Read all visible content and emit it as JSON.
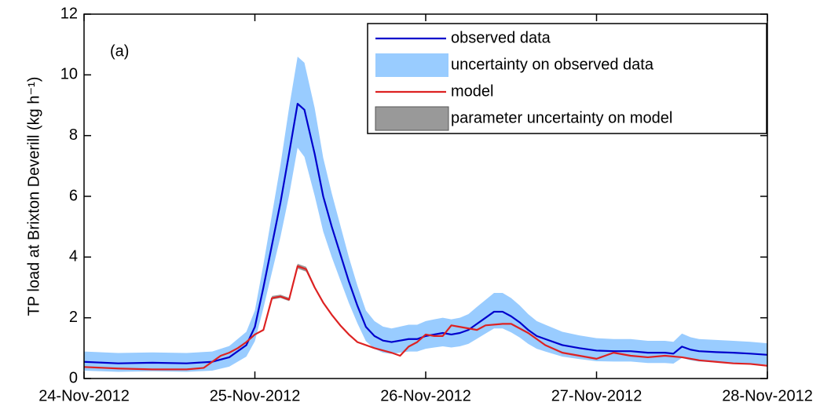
{
  "chart_data": {
    "type": "line",
    "y_label": "TP load at Brixton Deverill (kg h⁻¹)",
    "annotation": "(a)",
    "xlim": [
      0,
      4
    ],
    "xticks": [
      {
        "value": 0,
        "label": "24-Nov-2012"
      },
      {
        "value": 1,
        "label": "25-Nov-2012"
      },
      {
        "value": 2,
        "label": "26-Nov-2012"
      },
      {
        "value": 3,
        "label": "27-Nov-2012"
      },
      {
        "value": 4,
        "label": "28-Nov-2012"
      }
    ],
    "ylim": [
      0,
      12
    ],
    "yticks": [
      0,
      2,
      4,
      6,
      8,
      10,
      12
    ],
    "grid": false,
    "legend": "upper right",
    "series": [
      {
        "name": "observed data",
        "color": "#0000cc",
        "x": [
          0,
          0.2,
          0.4,
          0.6,
          0.75,
          0.85,
          0.95,
          1.0,
          1.05,
          1.1,
          1.15,
          1.2,
          1.25,
          1.29,
          1.35,
          1.4,
          1.45,
          1.5,
          1.55,
          1.6,
          1.65,
          1.7,
          1.75,
          1.8,
          1.85,
          1.9,
          1.95,
          2.0,
          2.05,
          2.1,
          2.15,
          2.2,
          2.25,
          2.3,
          2.35,
          2.4,
          2.45,
          2.5,
          2.55,
          2.6,
          2.65,
          2.7,
          2.8,
          2.9,
          3.0,
          3.1,
          3.2,
          3.3,
          3.4,
          3.45,
          3.5,
          3.55,
          3.6,
          3.7,
          3.8,
          3.9,
          4.0
        ],
        "values": [
          0.55,
          0.5,
          0.52,
          0.5,
          0.55,
          0.7,
          1.1,
          1.7,
          3.0,
          4.4,
          5.8,
          7.4,
          9.05,
          8.85,
          7.4,
          6.0,
          5.0,
          4.1,
          3.2,
          2.4,
          1.7,
          1.4,
          1.25,
          1.2,
          1.25,
          1.3,
          1.3,
          1.4,
          1.45,
          1.5,
          1.45,
          1.5,
          1.6,
          1.8,
          2.0,
          2.2,
          2.2,
          2.05,
          1.85,
          1.6,
          1.4,
          1.3,
          1.1,
          1.0,
          0.92,
          0.9,
          0.9,
          0.85,
          0.85,
          0.82,
          1.05,
          0.95,
          0.9,
          0.87,
          0.85,
          0.82,
          0.78
        ]
      },
      {
        "name": "uncertainty on observed data",
        "color": "#99ccff",
        "x": [
          0,
          0.2,
          0.4,
          0.6,
          0.75,
          0.85,
          0.95,
          1.0,
          1.05,
          1.1,
          1.15,
          1.2,
          1.25,
          1.29,
          1.35,
          1.4,
          1.45,
          1.5,
          1.55,
          1.6,
          1.65,
          1.7,
          1.75,
          1.8,
          1.85,
          1.9,
          1.95,
          2.0,
          2.05,
          2.1,
          2.15,
          2.2,
          2.25,
          2.3,
          2.35,
          2.4,
          2.45,
          2.5,
          2.55,
          2.6,
          2.65,
          2.7,
          2.8,
          2.9,
          3.0,
          3.1,
          3.2,
          3.3,
          3.4,
          3.45,
          3.5,
          3.55,
          3.6,
          3.7,
          3.8,
          3.9,
          4.0
        ],
        "lower": [
          0.26,
          0.22,
          0.24,
          0.22,
          0.26,
          0.39,
          0.72,
          1.23,
          2.32,
          3.5,
          4.67,
          6.02,
          7.6,
          7.3,
          6.02,
          4.84,
          4.0,
          3.24,
          2.49,
          1.82,
          1.23,
          0.98,
          0.85,
          0.81,
          0.85,
          0.89,
          0.89,
          0.98,
          1.02,
          1.06,
          1.02,
          1.06,
          1.14,
          1.31,
          1.48,
          1.65,
          1.65,
          1.52,
          1.35,
          1.14,
          0.98,
          0.89,
          0.72,
          0.64,
          0.57,
          0.56,
          0.56,
          0.51,
          0.51,
          0.49,
          0.68,
          0.6,
          0.56,
          0.53,
          0.51,
          0.49,
          0.46
        ],
        "upper": [
          0.89,
          0.84,
          0.86,
          0.84,
          0.89,
          1.07,
          1.54,
          2.24,
          3.76,
          5.4,
          7.04,
          8.91,
          10.6,
          10.4,
          8.91,
          7.27,
          6.1,
          5.05,
          4.0,
          3.06,
          2.24,
          1.89,
          1.71,
          1.65,
          1.71,
          1.77,
          1.77,
          1.89,
          1.95,
          2.0,
          1.95,
          2.0,
          2.12,
          2.36,
          2.59,
          2.82,
          2.82,
          2.65,
          2.41,
          2.12,
          1.89,
          1.77,
          1.54,
          1.42,
          1.33,
          1.3,
          1.3,
          1.24,
          1.24,
          1.21,
          1.48,
          1.36,
          1.3,
          1.27,
          1.24,
          1.21,
          1.16
        ]
      },
      {
        "name": "model",
        "color": "#dd2222",
        "x": [
          0,
          0.2,
          0.4,
          0.6,
          0.7,
          0.75,
          0.8,
          0.85,
          0.9,
          0.95,
          1.0,
          1.05,
          1.1,
          1.15,
          1.2,
          1.25,
          1.3,
          1.35,
          1.4,
          1.45,
          1.5,
          1.55,
          1.6,
          1.7,
          1.8,
          1.85,
          1.9,
          1.95,
          2.0,
          2.05,
          2.1,
          2.15,
          2.2,
          2.3,
          2.35,
          2.45,
          2.5,
          2.6,
          2.7,
          2.8,
          2.9,
          3.0,
          3.05,
          3.1,
          3.2,
          3.3,
          3.4,
          3.5,
          3.6,
          3.7,
          3.8,
          3.9,
          4.0
        ],
        "values": [
          0.38,
          0.33,
          0.3,
          0.3,
          0.35,
          0.55,
          0.75,
          0.85,
          1.0,
          1.2,
          1.45,
          1.6,
          2.65,
          2.7,
          2.6,
          3.7,
          3.6,
          3.0,
          2.5,
          2.1,
          1.75,
          1.45,
          1.2,
          1.0,
          0.85,
          0.75,
          1.05,
          1.2,
          1.45,
          1.4,
          1.4,
          1.75,
          1.7,
          1.6,
          1.75,
          1.8,
          1.8,
          1.5,
          1.1,
          0.85,
          0.75,
          0.65,
          0.75,
          0.85,
          0.75,
          0.7,
          0.75,
          0.7,
          0.6,
          0.55,
          0.5,
          0.48,
          0.42
        ]
      },
      {
        "name": "parameter uncertainty on model",
        "color": "#999999",
        "x": [
          1.1,
          1.15,
          1.2,
          1.25,
          1.3,
          1.35
        ],
        "lower": [
          2.6,
          2.65,
          2.55,
          3.62,
          3.52,
          2.95
        ],
        "upper": [
          2.72,
          2.76,
          2.66,
          3.78,
          3.68,
          3.06
        ]
      }
    ]
  }
}
